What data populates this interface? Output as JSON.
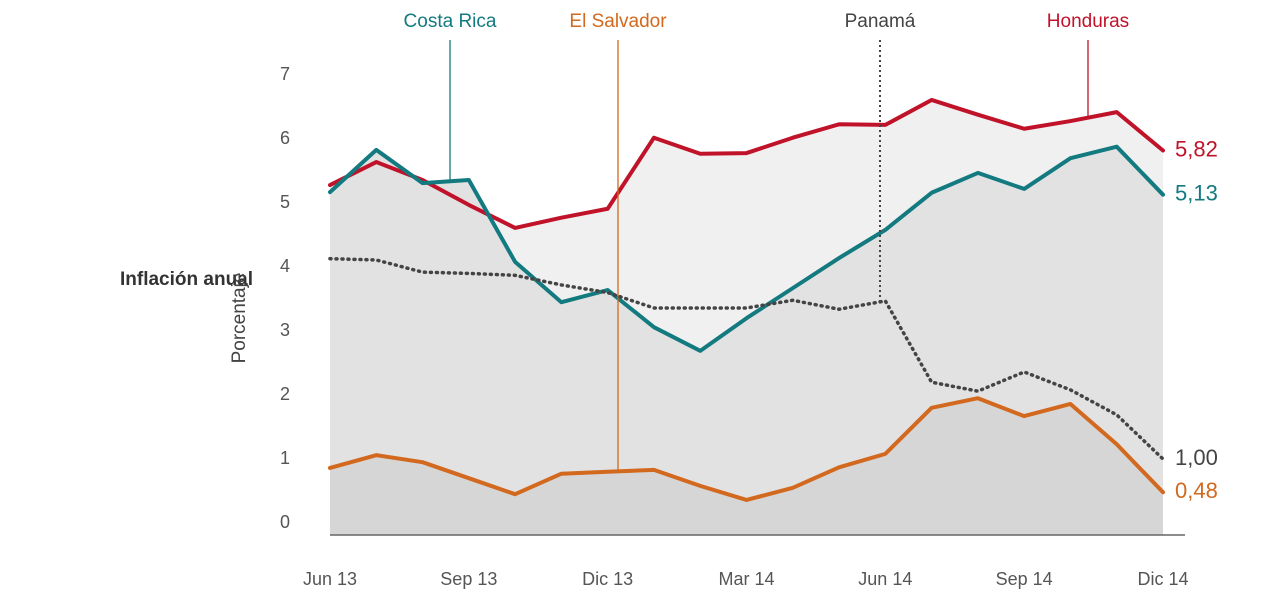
{
  "chart_data": {
    "type": "line",
    "title": "Inflación anual",
    "y_label": "Porcentaje",
    "categories": [
      "Jun 13",
      null,
      null,
      "Sep 13",
      null,
      null,
      "Dic 13",
      null,
      null,
      "Mar 14",
      null,
      null,
      "Jun 14",
      null,
      null,
      "Sep 14",
      null,
      null,
      "Dic 14"
    ],
    "ylim": [
      0,
      7
    ],
    "yticks": [
      0,
      1,
      2,
      3,
      4,
      5,
      6,
      7
    ],
    "series": [
      {
        "name": "Honduras",
        "color": "#c0132a",
        "fill": "#f0f0f0",
        "values": [
          5.28,
          5.64,
          5.36,
          4.97,
          4.61,
          4.77,
          4.91,
          6.02,
          5.77,
          5.78,
          6.02,
          6.23,
          6.22,
          6.61,
          6.38,
          6.16,
          6.28,
          6.42,
          5.82
        ],
        "value_labels": [
          null,
          null,
          null,
          null,
          null,
          null,
          null,
          null,
          null,
          null,
          null,
          null,
          null,
          null,
          null,
          null,
          null,
          null,
          "5,82"
        ]
      },
      {
        "name": "Costa Rica",
        "color": "#137a80",
        "fill": "#e2e2e2",
        "values": [
          5.17,
          5.83,
          5.31,
          5.36,
          4.08,
          3.45,
          3.64,
          3.06,
          2.69,
          3.2,
          3.67,
          4.14,
          4.58,
          5.16,
          5.47,
          5.22,
          5.7,
          5.88,
          5.13
        ],
        "value_labels": [
          null,
          null,
          null,
          null,
          null,
          null,
          null,
          null,
          null,
          null,
          null,
          null,
          null,
          null,
          null,
          null,
          null,
          null,
          "5,13"
        ]
      },
      {
        "name": "El Salvador",
        "color": "#d2691e",
        "fill": "#d6d6d6",
        "values": [
          0.86,
          1.06,
          0.95,
          0.7,
          0.45,
          0.77,
          0.8,
          0.83,
          0.58,
          0.36,
          0.55,
          0.87,
          1.08,
          1.8,
          1.95,
          1.67,
          1.86,
          1.23,
          0.48
        ],
        "value_labels": [
          null,
          null,
          null,
          null,
          null,
          null,
          null,
          null,
          null,
          null,
          null,
          null,
          null,
          null,
          null,
          null,
          null,
          null,
          "0,48"
        ]
      },
      {
        "name": "Panamá",
        "color": "#444444",
        "dash": "dotted",
        "values": [
          4.13,
          4.11,
          3.92,
          3.9,
          3.87,
          3.72,
          3.6,
          3.36,
          3.36,
          3.36,
          3.48,
          3.34,
          3.47,
          2.2,
          2.06,
          2.36,
          2.08,
          1.69,
          1.0
        ],
        "value_labels": [
          null,
          null,
          null,
          null,
          null,
          null,
          null,
          null,
          null,
          null,
          null,
          null,
          null,
          null,
          null,
          null,
          null,
          null,
          "1,00"
        ]
      }
    ]
  }
}
